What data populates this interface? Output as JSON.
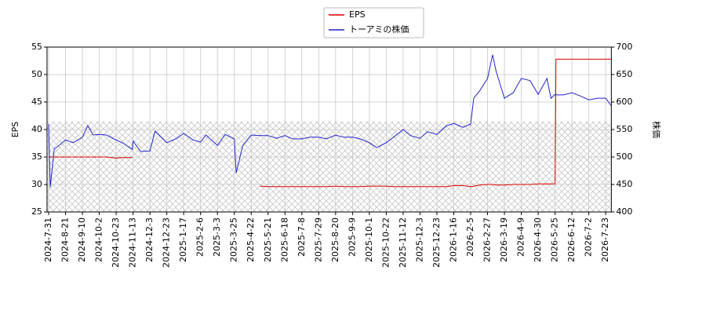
{
  "chart_data": {
    "type": "line",
    "x": [
      "2024-07-31",
      "2024-08-02",
      "2024-08-07",
      "2024-08-12",
      "2024-08-21",
      "2024-08-30",
      "2024-09-10",
      "2024-09-17",
      "2024-09-24",
      "2024-10-02",
      "2024-10-11",
      "2024-10-23",
      "2024-11-01",
      "2024-11-12",
      "2024-11-13",
      "2024-11-22",
      "2024-12-03",
      "2024-12-09",
      "2024-12-23",
      "2025-01-07",
      "2025-01-17",
      "2025-01-28",
      "2025-02-06",
      "2025-02-14",
      "2025-03-03",
      "2025-03-13",
      "2025-03-25",
      "2025-03-28",
      "2025-04-08",
      "2025-04-22",
      "2025-05-07",
      "2025-05-21",
      "2025-06-04",
      "2025-06-18",
      "2025-06-27",
      "2025-07-08",
      "2025-07-18",
      "2025-07-29",
      "2025-08-08",
      "2025-08-20",
      "2025-08-29",
      "2025-09-09",
      "2025-09-19",
      "2025-10-01",
      "2025-10-10",
      "2025-10-22",
      "2025-10-31",
      "2025-11-12",
      "2025-11-21",
      "2025-12-03",
      "2025-12-12",
      "2025-12-23",
      "2026-01-06",
      "2026-01-16",
      "2026-01-27",
      "2026-02-05",
      "2026-02-09",
      "2026-02-17",
      "2026-02-27",
      "2026-03-05",
      "2026-03-09",
      "2026-03-19",
      "2026-03-30",
      "2026-04-09",
      "2026-04-20",
      "2026-04-30",
      "2026-05-13",
      "2026-05-19",
      "2026-05-25",
      "2026-05-26",
      "2026-06-03",
      "2026-06-12",
      "2026-06-22",
      "2026-07-02",
      "2026-07-13",
      "2026-07-23",
      "2026-07-30"
    ],
    "series": [
      {
        "name": "EPS",
        "color": "#dd0000",
        "axis": "y",
        "values": [
          35.0,
          35.0,
          35.0,
          35.0,
          35.0,
          35.0,
          35.0,
          35.0,
          35.0,
          35.0,
          35.0,
          34.8,
          34.9,
          34.9,
          null,
          null,
          null,
          null,
          null,
          null,
          null,
          null,
          null,
          null,
          null,
          null,
          null,
          null,
          null,
          null,
          29.7,
          29.6,
          29.6,
          29.6,
          29.6,
          29.6,
          29.6,
          29.6,
          29.6,
          29.7,
          29.6,
          29.6,
          29.6,
          29.7,
          29.7,
          29.7,
          29.6,
          29.6,
          29.6,
          29.6,
          29.6,
          29.6,
          29.6,
          29.8,
          29.8,
          29.6,
          29.7,
          29.9,
          30.0,
          30.0,
          29.9,
          29.9,
          30.0,
          30.0,
          30.0,
          30.1,
          30.1,
          30.1,
          30.1,
          52.8,
          52.8,
          52.8,
          52.8,
          52.8,
          52.8,
          52.8,
          52.8
        ]
      },
      {
        "name": "トーアミの株価",
        "color": "#2222cc",
        "axis": "y2",
        "values": [
          560,
          445,
          515,
          520,
          531,
          526,
          536,
          557,
          540,
          541,
          540,
          531,
          525,
          514,
          529,
          510,
          511,
          547,
          526,
          534,
          543,
          531,
          527,
          540,
          521,
          541,
          533,
          471,
          521,
          540,
          539,
          539,
          534,
          539,
          533,
          533,
          536,
          536,
          533,
          540,
          536,
          536,
          533,
          526,
          517,
          526,
          536,
          550,
          539,
          534,
          546,
          541,
          557,
          561,
          554,
          560,
          607,
          621,
          643,
          686,
          657,
          607,
          617,
          643,
          639,
          614,
          643,
          607,
          614,
          613,
          613,
          617,
          611,
          604,
          607,
          607,
          593
        ]
      }
    ],
    "xlim": [
      "2024-07-29",
      "2026-07-30"
    ],
    "xticks": [
      "2024-7-31",
      "2024-8-21",
      "2024-9-10",
      "2024-10-2",
      "2024-10-23",
      "2024-11-13",
      "2024-12-3",
      "2024-12-23",
      "2025-1-17",
      "2025-2-6",
      "2025-3-3",
      "2025-3-25",
      "2025-4-22",
      "2025-5-21",
      "2025-6-18",
      "2025-7-8",
      "2025-7-29",
      "2025-8-20",
      "2025-9-9",
      "2025-10-1",
      "2025-10-22",
      "2025-11-12",
      "2025-12-3",
      "2025-12-23",
      "2026-1-16",
      "2026-2-5",
      "2026-2-27",
      "2026-3-19",
      "2026-4-9",
      "2026-4-30",
      "2026-5-25",
      "2026-6-12",
      "2026-7-2",
      "2026-7-23"
    ],
    "ylabel": "EPS",
    "ylim": [
      25,
      55
    ],
    "yticks": [
      25,
      30,
      35,
      40,
      45,
      50,
      55
    ],
    "y2label": "株価",
    "y2lim": [
      400,
      700
    ],
    "y2ticks": [
      400,
      450,
      500,
      550,
      600,
      650,
      700
    ],
    "shaded_band": {
      "ylim": [
        25,
        41.5
      ]
    },
    "grid": true,
    "legend": "upper center"
  }
}
